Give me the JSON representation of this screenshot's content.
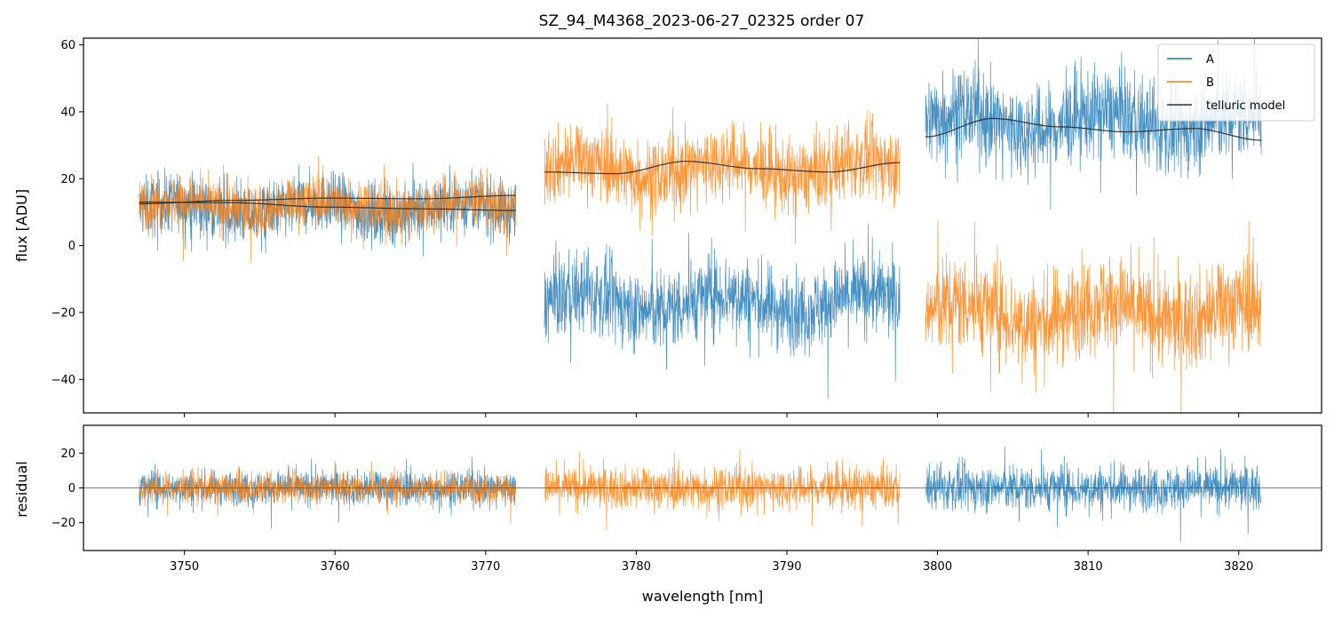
{
  "chart_data": {
    "type": "line",
    "title": "SZ_94_M4368_2023-06-27_02325  order 07",
    "xlabel": "wavelength [nm]",
    "xlim": [
      3743.3,
      3825.5
    ],
    "xticks": [
      3750,
      3760,
      3770,
      3780,
      3790,
      3800,
      3810,
      3820
    ],
    "colors": {
      "A": "#1f77b4",
      "B": "#ff7f0e",
      "model": "#333333",
      "zero": "#555555"
    },
    "legend": {
      "location": "top-right",
      "entries": [
        {
          "name": "A",
          "color": "#1f77b4"
        },
        {
          "name": "B",
          "color": "#ff7f0e"
        },
        {
          "name": "telluric model",
          "color": "#333333"
        }
      ]
    },
    "panels": [
      {
        "id": "flux",
        "ylabel": "flux [ADU]",
        "ylim": [
          -50,
          62
        ],
        "yticks": [
          -40,
          -20,
          0,
          20,
          40,
          60
        ],
        "segments": [
          {
            "x": [
              3747.0,
              3772.0
            ],
            "A_mean": 11,
            "A_noise": 8,
            "B_mean": 12,
            "B_noise": 7,
            "model_A": [
              12.5,
              13.5,
              14.2,
              14.0,
              15.0
            ],
            "model_B": [
              13.0,
              12.8,
              11.5,
              11.0,
              10.5
            ]
          },
          {
            "x": [
              3773.9,
              3797.5
            ],
            "A_mean": -17,
            "A_noise": 11,
            "B_mean": 23,
            "B_noise": 10,
            "model_B": [
              22.0,
              21.5,
              25.2,
              23.0,
              22.0,
              24.8
            ]
          },
          {
            "x": [
              3799.2,
              3821.5
            ],
            "A_mean": 37,
            "A_noise": 12,
            "B_mean": -20,
            "B_noise": 13,
            "model_A": [
              32.5,
              38.0,
              35.5,
              34.0,
              35.0,
              31.5
            ]
          }
        ]
      },
      {
        "id": "residual",
        "ylabel": "residual",
        "ylim": [
          -36,
          36
        ],
        "yticks": [
          -20,
          0,
          20
        ],
        "zero_line": 0,
        "segments": [
          {
            "x": [
              3747.0,
              3772.0
            ],
            "A_noise": 9,
            "B_noise": 8
          },
          {
            "x": [
              3773.9,
              3797.5
            ],
            "B_noise": 11
          },
          {
            "x": [
              3799.2,
              3821.5
            ],
            "A_noise": 12
          }
        ]
      }
    ]
  }
}
